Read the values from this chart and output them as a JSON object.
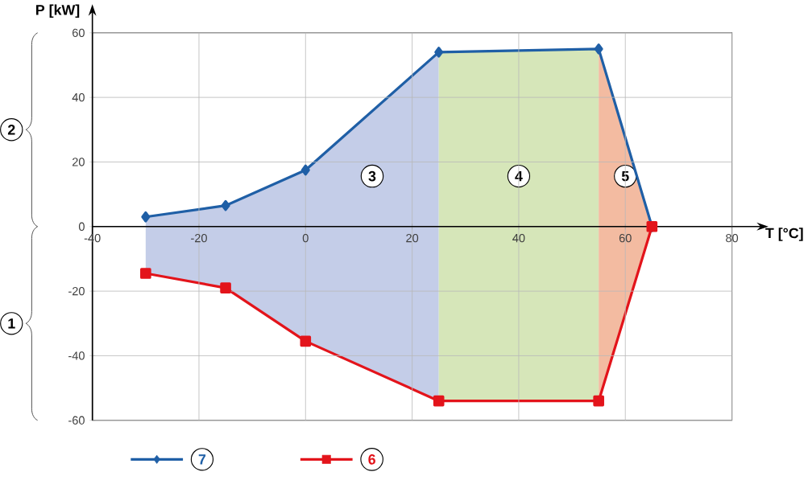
{
  "chart_data": {
    "type": "line",
    "xlabel": "T [°C]",
    "ylabel": "P [kW]",
    "xlim": [
      -40,
      80
    ],
    "ylim": [
      -60,
      60
    ],
    "xticks": [
      -40,
      -20,
      0,
      20,
      40,
      60,
      80
    ],
    "yticks": [
      -60,
      -40,
      -20,
      0,
      20,
      40,
      60
    ],
    "grid": true,
    "legend": "bottom",
    "line_style": "solid",
    "series": [
      {
        "type": "area",
        "name": "3",
        "color": "#c4cde8",
        "x": [
          -30,
          -15,
          0,
          25
        ],
        "values": [
          3,
          6.5,
          17.5,
          54
        ]
      },
      {
        "type": "area",
        "color": "#c4cde8",
        "x": [
          -30,
          -15,
          0,
          25
        ],
        "values": [
          -14.5,
          -19,
          -35.5,
          -54
        ]
      },
      {
        "type": "area",
        "name": "4",
        "color": "#d6e6b9",
        "x": [
          25,
          55
        ],
        "values": [
          54,
          55
        ]
      },
      {
        "type": "area",
        "color": "#d6e6b9",
        "x": [
          25,
          55
        ],
        "values": [
          -54,
          -54
        ]
      },
      {
        "type": "area",
        "name": "5",
        "color": "#f3bba1",
        "x": [
          55,
          65
        ],
        "values": [
          55,
          0
        ]
      },
      {
        "type": "area",
        "color": "#f3bba1",
        "x": [
          55,
          65
        ],
        "values": [
          -54,
          0
        ]
      },
      {
        "name": "7",
        "color": "#1f5fa6",
        "marker": "diamond",
        "x": [
          -30,
          -15,
          0,
          25,
          55,
          65
        ],
        "values": [
          3,
          6.5,
          17.5,
          54,
          55,
          0
        ]
      },
      {
        "name": "6",
        "color": "#e3141b",
        "marker": "square",
        "x": [
          -30,
          -15,
          0,
          25,
          55,
          65
        ],
        "values": [
          -14.5,
          -19,
          -35.5,
          -54,
          -54,
          0
        ]
      }
    ],
    "annotations": [
      "2",
      "1"
    ]
  }
}
